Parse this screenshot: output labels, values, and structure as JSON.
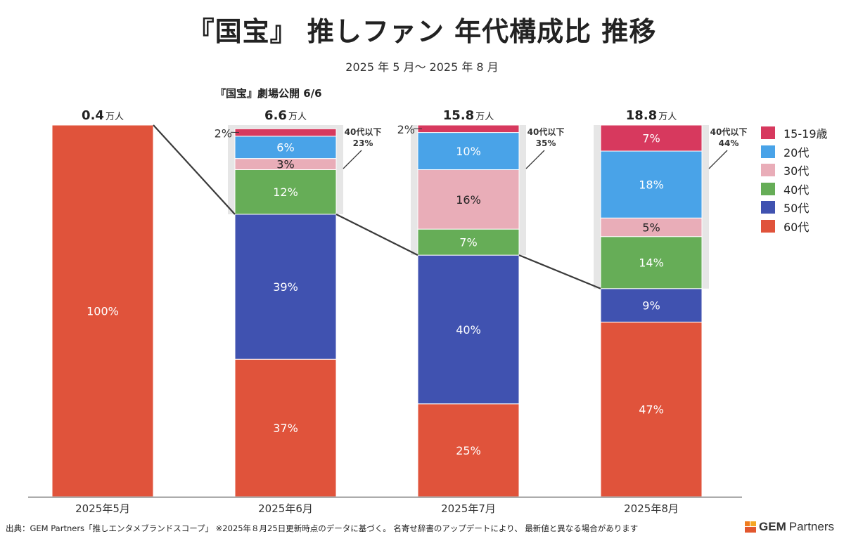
{
  "title": "『国宝』 推しファン 年代構成比 推移",
  "subtitle": "2025 年 5 月〜 2025 年 8 月",
  "footer": "出典：GEM Partners「推しエンタメブランドスコープ」 ※2025年８月25日更新時点のデータに基づく。 名寄せ辞書のアップデートにより、 最新値と異なる場合があります",
  "logo": {
    "brand_bold": "GEM",
    "brand_rest": "Partners",
    "colors": [
      "#f07d1e",
      "#f5a623",
      "#e2572e"
    ]
  },
  "chart_data": {
    "type": "bar",
    "stacked": true,
    "percent": true,
    "categories": [
      "2025年5月",
      "2025年6月",
      "2025年7月",
      "2025年8月"
    ],
    "totals": [
      {
        "value": "0.4",
        "unit": "万人"
      },
      {
        "value": "6.6",
        "unit": "万人"
      },
      {
        "value": "15.8",
        "unit": "万人"
      },
      {
        "value": "18.8",
        "unit": "万人"
      }
    ],
    "series": [
      {
        "name": "60代",
        "color": "#e0533b",
        "values": [
          100,
          37,
          25,
          47
        ]
      },
      {
        "name": "50代",
        "color": "#4052b0",
        "values": [
          0,
          39,
          40,
          9
        ]
      },
      {
        "name": "40代",
        "color": "#66ad57",
        "values": [
          0,
          12,
          7,
          14
        ]
      },
      {
        "name": "30代",
        "color": "#e9adb8",
        "values": [
          0,
          3,
          16,
          5
        ]
      },
      {
        "name": "20代",
        "color": "#49a3e8",
        "values": [
          0,
          6,
          10,
          18
        ]
      },
      {
        "name": "15-19歳",
        "color": "#d7395e",
        "values": [
          0,
          2,
          2,
          7
        ]
      }
    ],
    "legend_order": [
      "15-19歳",
      "20代",
      "30代",
      "40代",
      "50代",
      "60代"
    ],
    "legend_position": "right",
    "under40_labels": [
      null,
      {
        "line1": "40代以下",
        "line2": "23%"
      },
      {
        "line1": "40代以下",
        "line2": "35%"
      },
      {
        "line1": "40代以下",
        "line2": "44%"
      }
    ],
    "annotation": {
      "category_index": 1,
      "text": "『国宝』劇場公開 6/6"
    },
    "ylim": [
      0,
      100
    ],
    "connector_lines": true,
    "colors": {
      "connector": "#3a3a3a",
      "highlight_band": "#e6e6e6",
      "axis": "#555555"
    }
  }
}
